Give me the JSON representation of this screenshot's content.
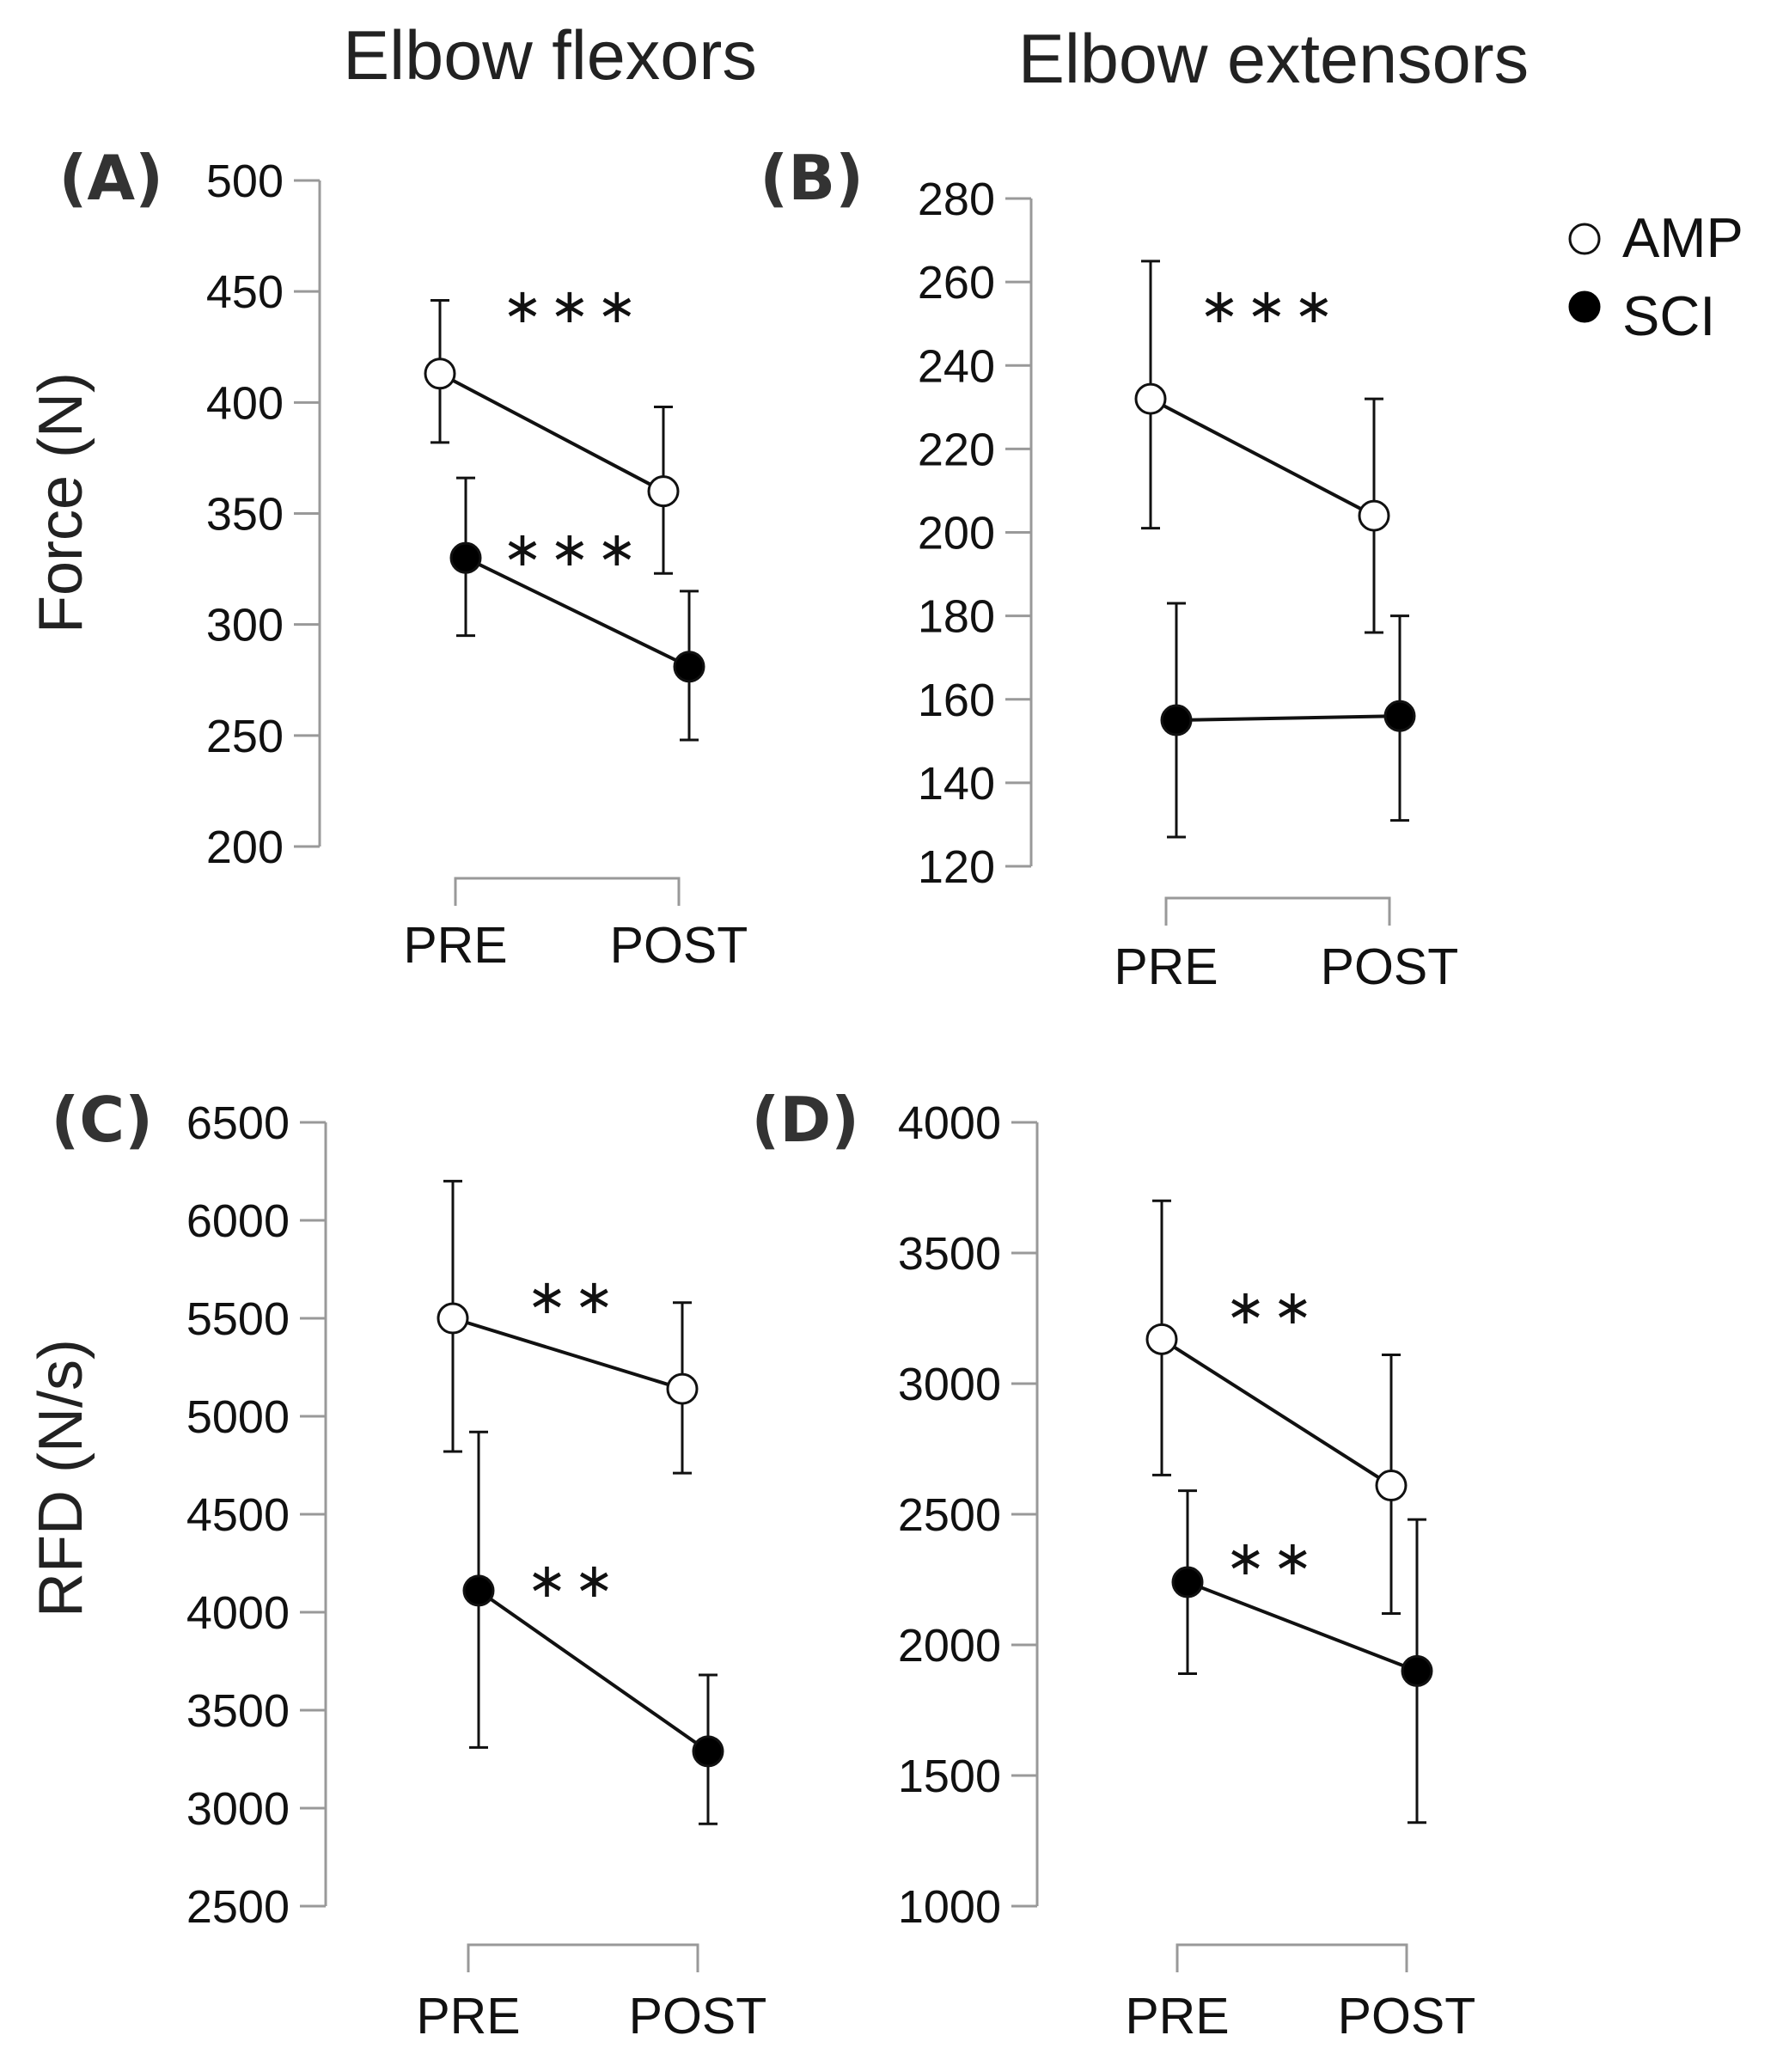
{
  "column_titles": [
    "Elbow flexors",
    "Elbow extensors"
  ],
  "row_labels": [
    "Force (N)",
    "RFD (N/s)"
  ],
  "legend": [
    {
      "name": "AMP",
      "marker": "open-circle"
    },
    {
      "name": "SCI",
      "marker": "filled-circle"
    }
  ],
  "colors": {
    "line": "#111111",
    "axis": "#999999",
    "open_fill": "#ffffff",
    "filled_fill": "#000000"
  },
  "chart_data": [
    {
      "panel": "(A)",
      "type": "line",
      "title": "Elbow flexors",
      "ylabel": "Force (N)",
      "categories": [
        "PRE",
        "POST"
      ],
      "ylim": [
        200,
        500
      ],
      "yticks": [
        500,
        450,
        400,
        350,
        300,
        250,
        200
      ],
      "series": [
        {
          "name": "AMP",
          "values": [
            413,
            360
          ],
          "err_low": [
            382,
            323
          ],
          "err_high": [
            446,
            398
          ],
          "annotation": "***"
        },
        {
          "name": "SCI",
          "values": [
            330,
            281
          ],
          "err_low": [
            295,
            248
          ],
          "err_high": [
            366,
            315
          ],
          "annotation": "***"
        }
      ]
    },
    {
      "panel": "(B)",
      "type": "line",
      "title": "Elbow extensors",
      "ylabel": "",
      "categories": [
        "PRE",
        "POST"
      ],
      "ylim": [
        120,
        280
      ],
      "yticks": [
        280,
        260,
        240,
        220,
        200,
        180,
        160,
        140,
        120
      ],
      "series": [
        {
          "name": "AMP",
          "values": [
            232,
            204
          ],
          "err_low": [
            201,
            176
          ],
          "err_high": [
            265,
            232
          ],
          "annotation": "***"
        },
        {
          "name": "SCI",
          "values": [
            155,
            156
          ],
          "err_low": [
            127,
            131
          ],
          "err_high": [
            183,
            180
          ],
          "annotation": ""
        }
      ]
    },
    {
      "panel": "(C)",
      "type": "line",
      "title": "",
      "ylabel": "RFD (N/s)",
      "categories": [
        "PRE",
        "POST"
      ],
      "ylim": [
        2500,
        6500
      ],
      "yticks": [
        6500,
        6000,
        5500,
        5000,
        4500,
        4000,
        3500,
        3000,
        2500
      ],
      "series": [
        {
          "name": "AMP",
          "values": [
            5500,
            5140
          ],
          "err_low": [
            4820,
            4710
          ],
          "err_high": [
            6200,
            5580
          ],
          "annotation": "**"
        },
        {
          "name": "SCI",
          "values": [
            4110,
            3290
          ],
          "err_low": [
            3310,
            2920
          ],
          "err_high": [
            4920,
            3680
          ],
          "annotation": "**"
        }
      ]
    },
    {
      "panel": "(D)",
      "type": "line",
      "title": "",
      "ylabel": "",
      "categories": [
        "PRE",
        "POST"
      ],
      "ylim": [
        1000,
        4000
      ],
      "yticks": [
        4000,
        3500,
        3000,
        2500,
        2000,
        1500,
        1000
      ],
      "series": [
        {
          "name": "AMP",
          "values": [
            3170,
            2610
          ],
          "err_low": [
            2650,
            2120
          ],
          "err_high": [
            3700,
            3110
          ],
          "annotation": "**"
        },
        {
          "name": "SCI",
          "values": [
            2240,
            1900
          ],
          "err_low": [
            1890,
            1320
          ],
          "err_high": [
            2590,
            2480
          ],
          "annotation": "**"
        }
      ]
    }
  ]
}
